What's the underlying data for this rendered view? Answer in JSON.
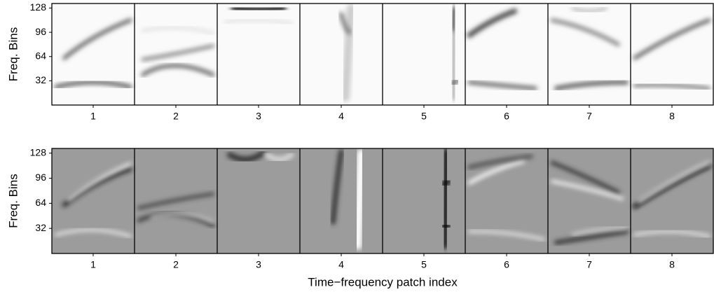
{
  "chart_data": [
    {
      "type": "image",
      "ylabel": "Freq. Bins",
      "categories": [
        "1",
        "2",
        "3",
        "4",
        "5",
        "6",
        "7",
        "8"
      ],
      "ylim": [
        0,
        134
      ],
      "yticks": [
        32,
        64,
        96,
        128
      ]
    },
    {
      "type": "image",
      "ylabel": "Freq. Bins",
      "xlabel": "Time−frequency patch index",
      "categories": [
        "1",
        "2",
        "3",
        "4",
        "5",
        "6",
        "7",
        "8"
      ],
      "ylim": [
        0,
        134
      ],
      "yticks": [
        32,
        64,
        96,
        128
      ]
    }
  ]
}
